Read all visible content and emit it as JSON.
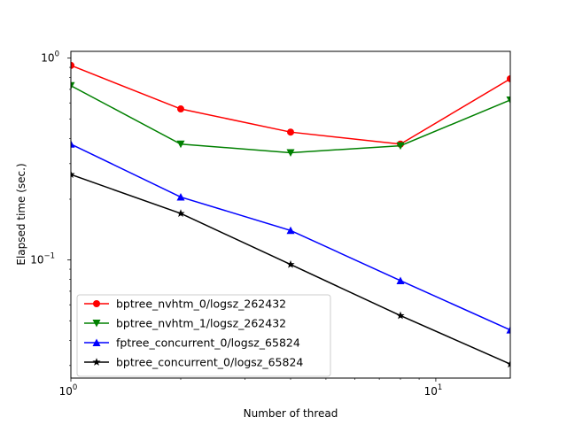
{
  "chart_data": {
    "type": "line",
    "title": "",
    "xlabel": "Number of thread",
    "ylabel": "Elapsed time (sec.)",
    "x_scale": "log",
    "y_scale": "log",
    "xlim": [
      1,
      16
    ],
    "ylim": [
      0.026,
      1.08
    ],
    "x": [
      1,
      2,
      4,
      8,
      16
    ],
    "x_ticks": [
      {
        "value": 1,
        "label": "10",
        "exp": "0"
      },
      {
        "value": 10,
        "label": "10",
        "exp": "1"
      }
    ],
    "y_ticks": [
      {
        "value": 0.1,
        "label": "10",
        "exp": "−1"
      },
      {
        "value": 1,
        "label": "10",
        "exp": "0"
      }
    ],
    "grid": false,
    "legend_position": "lower-left",
    "series": [
      {
        "name": "bptree_nvhtm_0/logsz_262432",
        "color": "#ff0000",
        "marker": "circle",
        "values": [
          0.92,
          0.56,
          0.43,
          0.375,
          0.79
        ]
      },
      {
        "name": "bptree_nvhtm_1/logsz_262432",
        "color": "#008000",
        "marker": "triangle-down",
        "values": [
          0.73,
          0.375,
          0.34,
          0.368,
          0.62
        ]
      },
      {
        "name": "fptree_concurrent_0/logsz_65824",
        "color": "#0000ff",
        "marker": "triangle-up",
        "values": [
          0.375,
          0.205,
          0.14,
          0.079,
          0.045
        ]
      },
      {
        "name": "bptree_concurrent_0/logsz_65824",
        "color": "#000000",
        "marker": "star",
        "values": [
          0.265,
          0.17,
          0.095,
          0.053,
          0.0305
        ]
      }
    ]
  }
}
